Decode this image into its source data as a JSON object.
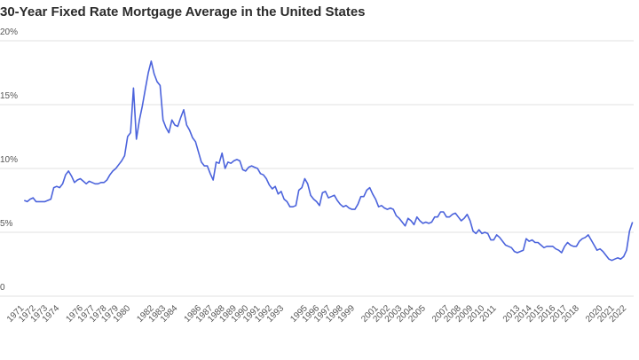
{
  "chart_data": {
    "type": "line",
    "title": "30-Year Fixed Rate Mortgage Average in the United States",
    "xlim": [
      1970.6,
      2022.6
    ],
    "ylim": [
      0,
      20
    ],
    "yticks": [
      0,
      {
        "value": 5,
        "label": "5%"
      },
      {
        "value": 10,
        "label": "10%"
      },
      {
        "value": 15,
        "label": "15%"
      },
      {
        "value": 20,
        "label": "20%"
      }
    ],
    "xticks": [
      1971,
      1972,
      1973,
      1974,
      1976,
      1977,
      1978,
      1979,
      1980,
      1982,
      1983,
      1984,
      1986,
      1987,
      1988,
      1989,
      1990,
      1991,
      1992,
      1993,
      1995,
      1996,
      1997,
      1998,
      1999,
      2001,
      2002,
      2003,
      2004,
      2005,
      2007,
      2008,
      2009,
      2010,
      2011,
      2013,
      2014,
      2015,
      2016,
      2017,
      2018,
      2020,
      2021,
      2022
    ],
    "grid": true,
    "x": [
      1971,
      1971.25,
      1971.5,
      1971.75,
      1972,
      1972.25,
      1972.5,
      1972.75,
      1973,
      1973.25,
      1973.5,
      1973.75,
      1974,
      1974.25,
      1974.5,
      1974.75,
      1975,
      1975.25,
      1975.5,
      1975.75,
      1976,
      1976.25,
      1976.5,
      1976.75,
      1977,
      1977.25,
      1977.5,
      1977.75,
      1978,
      1978.25,
      1978.5,
      1978.75,
      1979,
      1979.25,
      1979.5,
      1979.75,
      1980,
      1980.25,
      1980.5,
      1980.75,
      1981,
      1981.25,
      1981.5,
      1981.75,
      1982,
      1982.25,
      1982.5,
      1982.75,
      1983,
      1983.25,
      1983.5,
      1983.75,
      1984,
      1984.25,
      1984.5,
      1984.75,
      1985,
      1985.25,
      1985.5,
      1985.75,
      1986,
      1986.25,
      1986.5,
      1986.75,
      1987,
      1987.25,
      1987.5,
      1987.75,
      1988,
      1988.25,
      1988.5,
      1988.75,
      1989,
      1989.25,
      1989.5,
      1989.75,
      1990,
      1990.25,
      1990.5,
      1990.75,
      1991,
      1991.25,
      1991.5,
      1991.75,
      1992,
      1992.25,
      1992.5,
      1992.75,
      1993,
      1993.25,
      1993.5,
      1993.75,
      1994,
      1994.25,
      1994.5,
      1994.75,
      1995,
      1995.25,
      1995.5,
      1995.75,
      1996,
      1996.25,
      1996.5,
      1996.75,
      1997,
      1997.25,
      1997.5,
      1997.75,
      1998,
      1998.25,
      1998.5,
      1998.75,
      1999,
      1999.25,
      1999.5,
      1999.75,
      2000,
      2000.25,
      2000.5,
      2000.75,
      2001,
      2001.25,
      2001.5,
      2001.75,
      2002,
      2002.25,
      2002.5,
      2002.75,
      2003,
      2003.25,
      2003.5,
      2003.75,
      2004,
      2004.25,
      2004.5,
      2004.75,
      2005,
      2005.25,
      2005.5,
      2005.75,
      2006,
      2006.25,
      2006.5,
      2006.75,
      2007,
      2007.25,
      2007.5,
      2007.75,
      2008,
      2008.25,
      2008.5,
      2008.75,
      2009,
      2009.25,
      2009.5,
      2009.75,
      2010,
      2010.25,
      2010.5,
      2010.75,
      2011,
      2011.25,
      2011.5,
      2011.75,
      2012,
      2012.25,
      2012.5,
      2012.75,
      2013,
      2013.25,
      2013.5,
      2013.75,
      2014,
      2014.25,
      2014.5,
      2014.75,
      2015,
      2015.25,
      2015.5,
      2015.75,
      2016,
      2016.25,
      2016.5,
      2016.75,
      2017,
      2017.25,
      2017.5,
      2017.75,
      2018,
      2018.25,
      2018.5,
      2018.75,
      2019,
      2019.25,
      2019.5,
      2019.75,
      2020,
      2020.25,
      2020.5,
      2020.75,
      2021,
      2021.25,
      2021.5,
      2021.75,
      2022,
      2022.25,
      2022.5
    ],
    "series": [
      {
        "color": "#4b63dc",
        "values": [
          7.5,
          7.4,
          7.6,
          7.7,
          7.4,
          7.4,
          7.4,
          7.4,
          7.5,
          7.6,
          8.5,
          8.6,
          8.5,
          8.8,
          9.5,
          9.8,
          9.4,
          8.9,
          9.1,
          9.2,
          9.0,
          8.8,
          9.0,
          8.9,
          8.8,
          8.8,
          8.9,
          8.9,
          9.1,
          9.5,
          9.8,
          10.0,
          10.3,
          10.6,
          11.0,
          12.5,
          12.8,
          16.3,
          12.3,
          13.8,
          14.9,
          16.2,
          17.5,
          18.4,
          17.4,
          16.8,
          16.5,
          13.8,
          13.2,
          12.8,
          13.8,
          13.4,
          13.3,
          14.0,
          14.6,
          13.4,
          13.0,
          12.4,
          12.1,
          11.3,
          10.5,
          10.2,
          10.2,
          9.6,
          9.1,
          10.5,
          10.4,
          11.2,
          10.0,
          10.5,
          10.4,
          10.6,
          10.7,
          10.6,
          9.9,
          9.8,
          10.1,
          10.2,
          10.1,
          10.0,
          9.6,
          9.5,
          9.2,
          8.7,
          8.4,
          8.6,
          8.0,
          8.2,
          7.6,
          7.4,
          7.0,
          7.0,
          7.1,
          8.3,
          8.5,
          9.2,
          8.8,
          7.9,
          7.6,
          7.4,
          7.1,
          8.1,
          8.2,
          7.7,
          7.8,
          7.9,
          7.5,
          7.2,
          7.0,
          7.1,
          6.9,
          6.8,
          6.8,
          7.2,
          7.8,
          7.8,
          8.3,
          8.5,
          8.0,
          7.6,
          7.0,
          7.1,
          6.9,
          6.8,
          6.9,
          6.8,
          6.3,
          6.1,
          5.8,
          5.5,
          6.1,
          5.9,
          5.6,
          6.2,
          5.9,
          5.7,
          5.8,
          5.7,
          5.8,
          6.2,
          6.2,
          6.6,
          6.6,
          6.2,
          6.2,
          6.4,
          6.5,
          6.2,
          5.9,
          6.1,
          6.4,
          5.9,
          5.1,
          4.9,
          5.2,
          4.9,
          5.0,
          4.9,
          4.4,
          4.4,
          4.8,
          4.6,
          4.3,
          4.0,
          3.9,
          3.8,
          3.5,
          3.4,
          3.5,
          3.6,
          4.5,
          4.3,
          4.4,
          4.2,
          4.2,
          4.0,
          3.8,
          3.9,
          3.9,
          3.9,
          3.7,
          3.6,
          3.4,
          3.9,
          4.2,
          4.0,
          3.9,
          3.9,
          4.3,
          4.5,
          4.6,
          4.8,
          4.4,
          4.0,
          3.6,
          3.7,
          3.5,
          3.2,
          2.9,
          2.8,
          2.9,
          3.0,
          2.9,
          3.1,
          3.6,
          5.1,
          5.8
        ]
      }
    ]
  }
}
